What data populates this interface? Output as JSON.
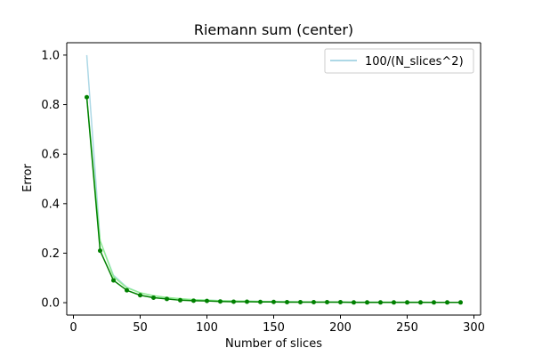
{
  "chart_data": {
    "type": "line",
    "title": "Riemann sum (center)",
    "xlabel": "Number of slices",
    "ylabel": "Error",
    "xlim": [
      -5,
      305
    ],
    "ylim": [
      -0.05,
      1.05
    ],
    "xticks": [
      0,
      50,
      100,
      150,
      200,
      250,
      300
    ],
    "yticks": [
      0.0,
      0.2,
      0.4,
      0.6,
      0.8,
      1.0
    ],
    "xtick_labels": [
      "0",
      "50",
      "100",
      "150",
      "200",
      "250",
      "300"
    ],
    "ytick_labels": [
      "0.0",
      "0.2",
      "0.4",
      "0.6",
      "0.8",
      "1.0"
    ],
    "grid": false,
    "legend": {
      "placement": "top-right",
      "entries": [
        "100/(N_slices^2)"
      ]
    },
    "x": [
      10,
      20,
      30,
      40,
      50,
      60,
      70,
      80,
      90,
      100,
      110,
      120,
      130,
      140,
      150,
      160,
      170,
      180,
      190,
      200,
      210,
      220,
      230,
      240,
      250,
      260,
      270,
      280,
      290
    ],
    "series": [
      {
        "name": "100/(N_slices^2)",
        "color": "#add8e6",
        "values": [
          1.0,
          0.25,
          0.1111,
          0.0625,
          0.04,
          0.0278,
          0.0204,
          0.0156,
          0.0123,
          0.01,
          0.0083,
          0.0069,
          0.0059,
          0.0051,
          0.0044,
          0.0039,
          0.0035,
          0.0031,
          0.0028,
          0.0025,
          0.0023,
          0.0021,
          0.0019,
          0.0017,
          0.0016,
          0.0015,
          0.0014,
          0.0013,
          0.0012
        ]
      },
      {
        "color": "#90ee90",
        "values": [
          0.83,
          0.25,
          0.105,
          0.06,
          0.04,
          0.028,
          0.021,
          0.016,
          0.012,
          0.01,
          0.008,
          0.007,
          0.006,
          0.005,
          0.004,
          0.004,
          0.003,
          0.003,
          0.003,
          0.002,
          0.002,
          0.002,
          0.002,
          0.002,
          0.002,
          0.002,
          0.001,
          0.001,
          0.001
        ]
      },
      {
        "color": "#008000",
        "markers": true,
        "values": [
          0.83,
          0.21,
          0.09,
          0.05,
          0.03,
          0.02,
          0.015,
          0.01,
          0.008,
          0.007,
          0.005,
          0.004,
          0.004,
          0.003,
          0.003,
          0.002,
          0.002,
          0.002,
          0.002,
          0.002,
          0.001,
          0.001,
          0.001,
          0.001,
          0.001,
          0.001,
          0.001,
          0.001,
          0.001
        ]
      }
    ]
  }
}
